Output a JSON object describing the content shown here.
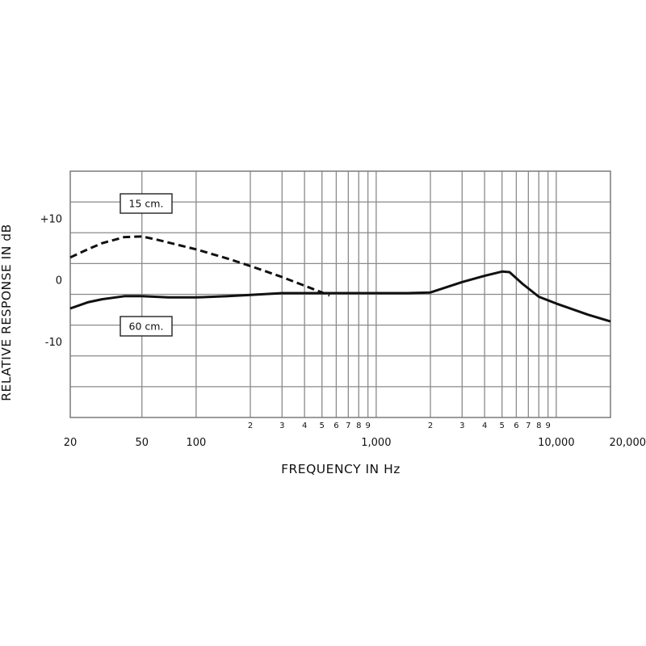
{
  "chart_data": {
    "type": "line",
    "title": "",
    "xlabel": "FREQUENCY IN Hz",
    "ylabel": "RELATIVE RESPONSE IN dB",
    "x_scale": "log",
    "xlim": [
      20,
      20000
    ],
    "ylim": [
      -20,
      20
    ],
    "grid": true,
    "x_tick_labels": [
      {
        "value": 20,
        "label": "20"
      },
      {
        "value": 50,
        "label": "50"
      },
      {
        "value": 100,
        "label": "100"
      },
      {
        "value": 1000,
        "label": "1,000"
      },
      {
        "value": 10000,
        "label": "10,000"
      },
      {
        "value": 20000,
        "label": "20,000"
      }
    ],
    "x_minor_labels": [
      {
        "value": 200,
        "label": "2"
      },
      {
        "value": 300,
        "label": "3"
      },
      {
        "value": 400,
        "label": "4"
      },
      {
        "value": 500,
        "label": "5"
      },
      {
        "value": 600,
        "label": "6"
      },
      {
        "value": 700,
        "label": "7"
      },
      {
        "value": 800,
        "label": "8"
      },
      {
        "value": 900,
        "label": "9"
      },
      {
        "value": 2000,
        "label": "2"
      },
      {
        "value": 3000,
        "label": "3"
      },
      {
        "value": 4000,
        "label": "4"
      },
      {
        "value": 5000,
        "label": "5"
      },
      {
        "value": 6000,
        "label": "6"
      },
      {
        "value": 7000,
        "label": "7"
      },
      {
        "value": 8000,
        "label": "8"
      },
      {
        "value": 9000,
        "label": "9"
      }
    ],
    "x_gridlines": [
      50,
      100,
      200,
      300,
      400,
      500,
      600,
      700,
      800,
      900,
      1000,
      2000,
      3000,
      4000,
      5000,
      6000,
      7000,
      8000,
      9000,
      10000
    ],
    "y_tick_labels": [
      {
        "value": 10,
        "label": "+10"
      },
      {
        "value": 0,
        "label": "0"
      },
      {
        "value": -10,
        "label": "-10"
      }
    ],
    "y_gridlines": [
      15,
      10,
      5,
      0,
      -5,
      -10,
      -15
    ],
    "series": [
      {
        "name": "15 cm.",
        "style": "dashed",
        "color": "#111111",
        "points": [
          [
            20,
            6
          ],
          [
            25,
            7.3
          ],
          [
            30,
            8.3
          ],
          [
            40,
            9.3
          ],
          [
            50,
            9.4
          ],
          [
            60,
            8.9
          ],
          [
            80,
            8
          ],
          [
            100,
            7.3
          ],
          [
            150,
            5.8
          ],
          [
            200,
            4.6
          ],
          [
            300,
            2.8
          ],
          [
            400,
            1.4
          ],
          [
            500,
            0.3
          ],
          [
            550,
            -0.2
          ]
        ]
      },
      {
        "name": "60 cm.",
        "style": "solid",
        "color": "#111111",
        "points": [
          [
            20,
            -2.3
          ],
          [
            25,
            -1.3
          ],
          [
            30,
            -0.8
          ],
          [
            40,
            -0.3
          ],
          [
            50,
            -0.3
          ],
          [
            70,
            -0.5
          ],
          [
            100,
            -0.5
          ],
          [
            150,
            -0.3
          ],
          [
            200,
            -0.1
          ],
          [
            300,
            0.2
          ],
          [
            500,
            0.2
          ],
          [
            700,
            0.2
          ],
          [
            1000,
            0.2
          ],
          [
            1500,
            0.2
          ],
          [
            2000,
            0.3
          ],
          [
            3000,
            2
          ],
          [
            4000,
            3
          ],
          [
            5000,
            3.7
          ],
          [
            5500,
            3.6
          ],
          [
            6500,
            1.7
          ],
          [
            8000,
            -0.4
          ],
          [
            10000,
            -1.5
          ],
          [
            15000,
            -3.3
          ],
          [
            20000,
            -4.4
          ]
        ]
      }
    ]
  }
}
